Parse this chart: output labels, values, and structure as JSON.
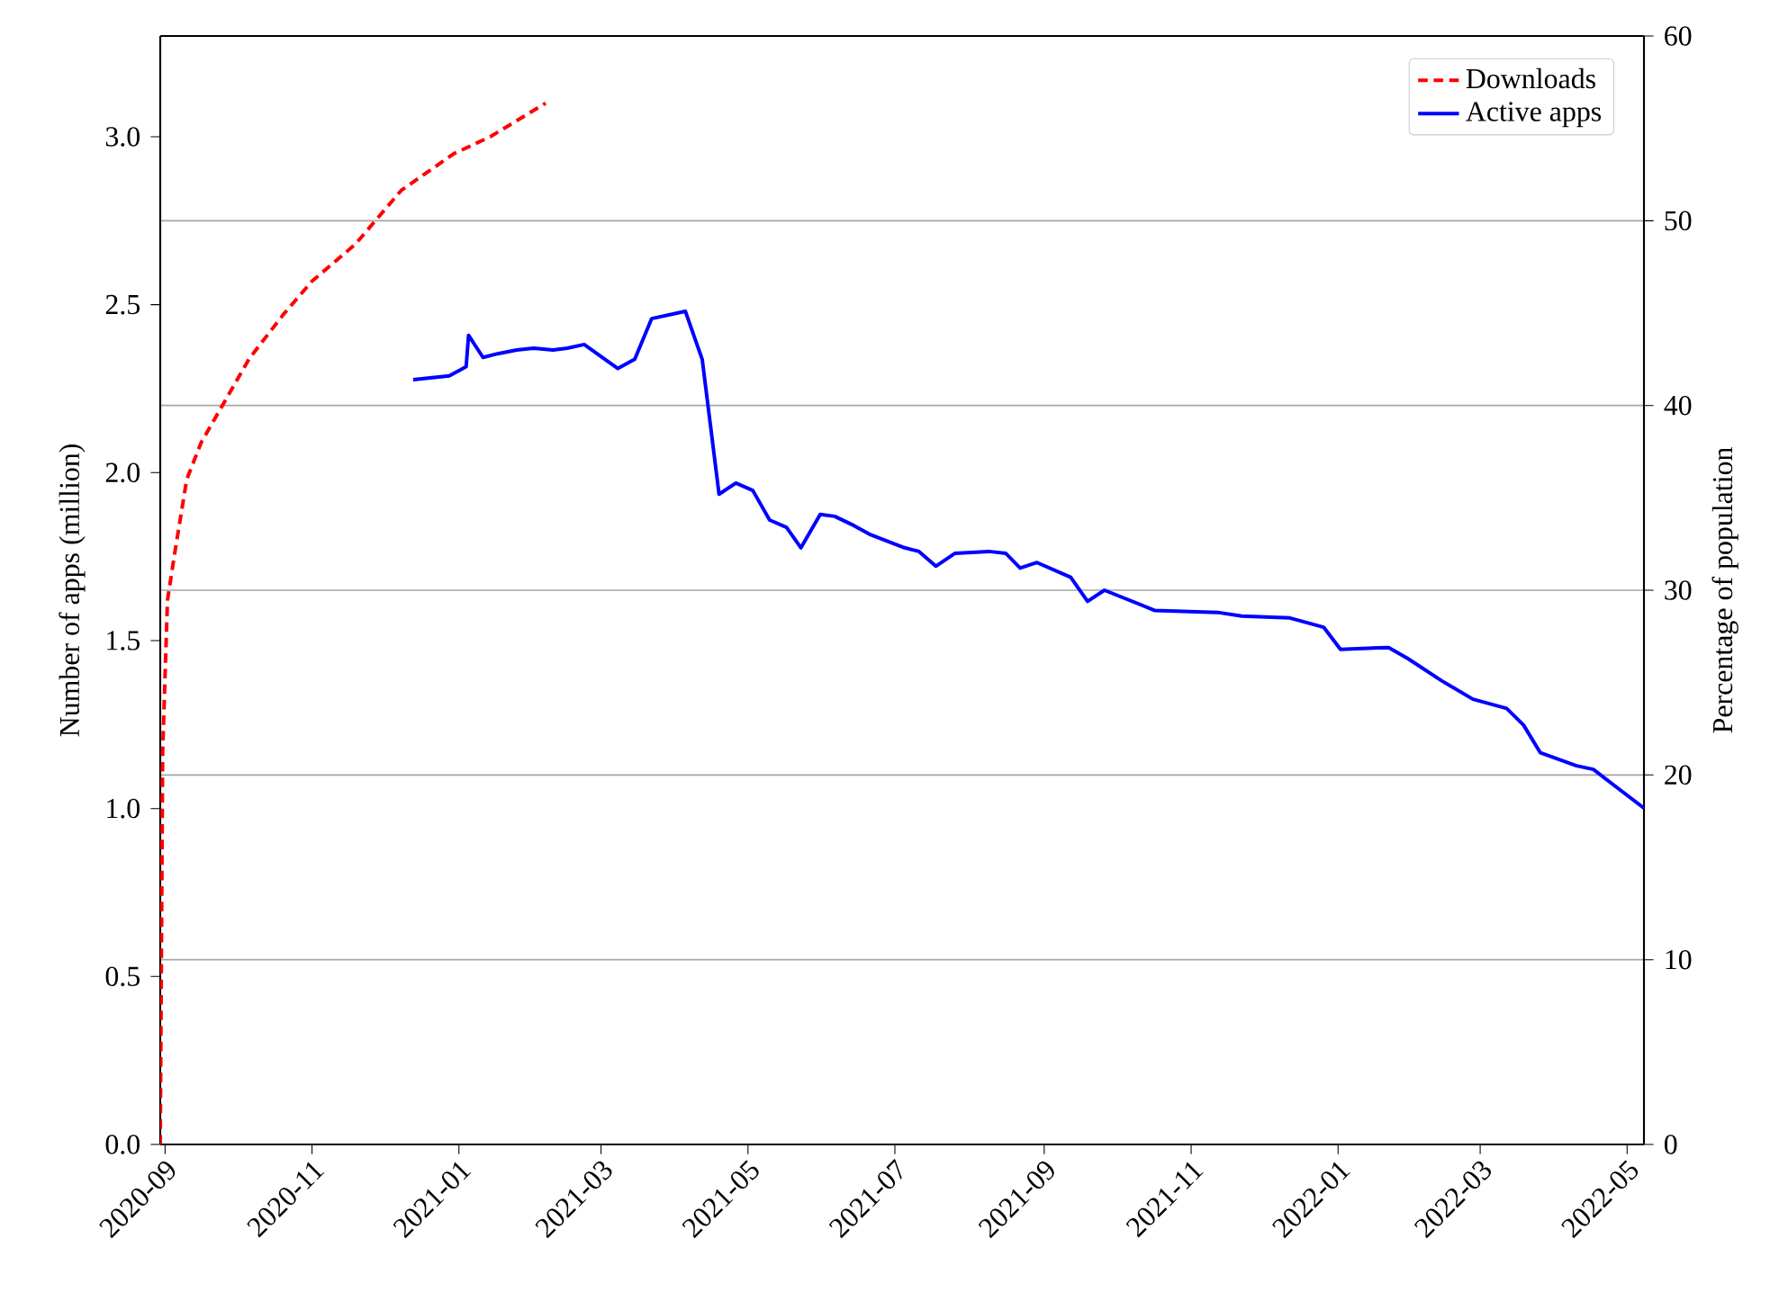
{
  "chart_data": {
    "type": "line",
    "ylabel": "Number of apps (million)",
    "y2label": "Percentage of population",
    "xlim": [
      "2020-08-30",
      "2022-05-08"
    ],
    "xticks": [
      {
        "value": "2020-09-01",
        "label": "2020-09"
      },
      {
        "value": "2020-11-01",
        "label": "2020-11"
      },
      {
        "value": "2021-01-01",
        "label": "2021-01"
      },
      {
        "value": "2021-03-01",
        "label": "2021-03"
      },
      {
        "value": "2021-05-01",
        "label": "2021-05"
      },
      {
        "value": "2021-07-01",
        "label": "2021-07"
      },
      {
        "value": "2021-09-01",
        "label": "2021-09"
      },
      {
        "value": "2021-11-01",
        "label": "2021-11"
      },
      {
        "value": "2022-01-01",
        "label": "2022-01"
      },
      {
        "value": "2022-03-01",
        "label": "2022-03"
      },
      {
        "value": "2022-05-01",
        "label": "2022-05"
      }
    ],
    "ylim": [
      0,
      3.3
    ],
    "yticks": [
      {
        "value": 0,
        "label": "0.0"
      },
      {
        "value": 0.5,
        "label": "0.5"
      },
      {
        "value": 1,
        "label": "1.0"
      },
      {
        "value": 1.5,
        "label": "1.5"
      },
      {
        "value": 2,
        "label": "2.0"
      },
      {
        "value": 2.5,
        "label": "2.5"
      },
      {
        "value": 3,
        "label": "3.0"
      }
    ],
    "y2lim": [
      0,
      60
    ],
    "y2ticks": [
      0,
      10,
      20,
      30,
      40,
      50,
      60
    ],
    "grid": "y2",
    "legend": "top right",
    "series": [
      {
        "name": "Downloads",
        "color": "#ff0000",
        "line_style": "dashed",
        "x": [
          "2020-08-30",
          "2020-08-31",
          "2020-09-02",
          "2020-09-05",
          "2020-09-10",
          "2020-09-16",
          "2020-09-24",
          "2020-10-06",
          "2020-10-20",
          "2020-11-01",
          "2020-11-19",
          "2020-12-08",
          "2020-12-30",
          "2021-01-14",
          "2021-02-06"
        ],
        "values": [
          0,
          1.17,
          1.62,
          1.76,
          1.98,
          2.09,
          2.19,
          2.34,
          2.47,
          2.57,
          2.68,
          2.84,
          2.95,
          3.0,
          3.1
        ]
      },
      {
        "name": "Active apps",
        "color": "#0000ff",
        "line_style": "solid",
        "axis": "y2",
        "x": [
          "2020-12-13",
          "2020-12-28",
          "2021-01-04",
          "2021-01-05",
          "2021-01-11",
          "2021-01-17",
          "2021-01-25",
          "2021-02-01",
          "2021-02-09",
          "2021-02-15",
          "2021-02-22",
          "2021-03-08",
          "2021-03-15",
          "2021-03-22",
          "2021-04-05",
          "2021-04-12",
          "2021-04-19",
          "2021-04-26",
          "2021-05-03",
          "2021-05-10",
          "2021-05-17",
          "2021-05-23",
          "2021-05-31",
          "2021-06-06",
          "2021-06-14",
          "2021-06-21",
          "2021-07-05",
          "2021-07-11",
          "2021-07-18",
          "2021-07-26",
          "2021-08-09",
          "2021-08-16",
          "2021-08-22",
          "2021-08-29",
          "2021-09-12",
          "2021-09-19",
          "2021-09-26",
          "2021-10-17",
          "2021-11-12",
          "2021-11-22",
          "2021-12-12",
          "2021-12-26",
          "2022-01-02",
          "2022-01-22",
          "2022-01-30",
          "2022-02-13",
          "2022-02-26",
          "2022-03-12",
          "2022-03-19",
          "2022-03-26",
          "2022-04-10",
          "2022-04-17",
          "2022-05-08"
        ],
        "values": [
          41.4,
          41.6,
          42.1,
          43.8,
          42.6,
          42.8,
          43.0,
          43.1,
          43.0,
          43.1,
          43.3,
          42.0,
          42.5,
          44.7,
          45.1,
          42.5,
          35.2,
          35.8,
          35.4,
          33.8,
          33.4,
          32.3,
          34.1,
          34.0,
          33.5,
          33.0,
          32.3,
          32.1,
          31.3,
          32.0,
          32.1,
          32.0,
          31.2,
          31.5,
          30.7,
          29.4,
          30.0,
          28.9,
          28.8,
          28.6,
          28.5,
          28.0,
          26.8,
          26.9,
          26.3,
          25.1,
          24.1,
          23.6,
          22.7,
          21.2,
          20.5,
          20.3,
          18.2
        ]
      }
    ]
  }
}
